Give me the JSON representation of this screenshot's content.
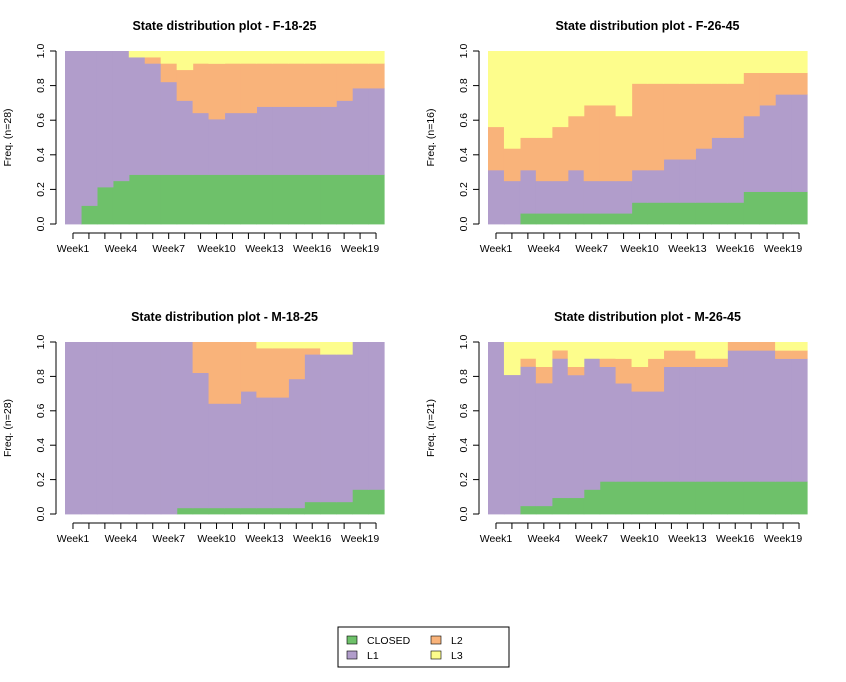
{
  "legend": {
    "entries": [
      {
        "label": "CLOSED",
        "color": "#6ec16a"
      },
      {
        "label": "L2",
        "color": "#f9b37a"
      },
      {
        "label": "L1",
        "color": "#b19dcb"
      },
      {
        "label": "L3",
        "color": "#fdfd8c"
      }
    ]
  },
  "chart_data": [
    {
      "type": "area",
      "subtype": "state-distribution-stacked-bar",
      "title": "State distribution plot -  F-18-25",
      "ylabel": "Freq. (n=28)",
      "ylim": [
        0,
        1
      ],
      "yticks": [
        "0.0",
        "0.2",
        "0.4",
        "0.6",
        "0.8",
        "1.0"
      ],
      "x": [
        "Week1",
        "Week2",
        "Week3",
        "Week4",
        "Week5",
        "Week6",
        "Week7",
        "Week8",
        "Week9",
        "Week10",
        "Week11",
        "Week12",
        "Week13",
        "Week14",
        "Week15",
        "Week16",
        "Week17",
        "Week18",
        "Week19",
        "Week20"
      ],
      "xtick_labels": [
        "Week1",
        "Week4",
        "Week7",
        "Week10",
        "Week13",
        "Week16",
        "Week19"
      ],
      "series": [
        {
          "name": "CLOSED",
          "color": "#6ec16a",
          "values": [
            0,
            0.107,
            0.214,
            0.25,
            0.286,
            0.286,
            0.286,
            0.286,
            0.286,
            0.286,
            0.286,
            0.286,
            0.286,
            0.286,
            0.286,
            0.286,
            0.286,
            0.286,
            0.286,
            0.286
          ]
        },
        {
          "name": "L1",
          "color": "#b19dcb",
          "values": [
            1.0,
            0.893,
            0.786,
            0.75,
            0.679,
            0.643,
            0.536,
            0.428,
            0.357,
            0.321,
            0.357,
            0.357,
            0.393,
            0.393,
            0.393,
            0.393,
            0.393,
            0.428,
            0.5,
            0.5
          ]
        },
        {
          "name": "L2",
          "color": "#f9b37a",
          "values": [
            0,
            0,
            0,
            0,
            0,
            0.036,
            0.107,
            0.178,
            0.286,
            0.321,
            0.286,
            0.286,
            0.25,
            0.25,
            0.25,
            0.25,
            0.25,
            0.215,
            0.143,
            0.143
          ]
        },
        {
          "name": "L3",
          "color": "#fdfd8c",
          "values": [
            0,
            0,
            0,
            0,
            0.035,
            0.035,
            0.071,
            0.108,
            0.071,
            0.072,
            0.071,
            0.071,
            0.071,
            0.071,
            0.071,
            0.071,
            0.071,
            0.071,
            0.071,
            0.071
          ]
        }
      ]
    },
    {
      "type": "area",
      "subtype": "state-distribution-stacked-bar",
      "title": "State distribution plot -  F-26-45",
      "ylabel": "Freq. (n=16)",
      "ylim": [
        0,
        1
      ],
      "yticks": [
        "0.0",
        "0.2",
        "0.4",
        "0.6",
        "0.8",
        "1.0"
      ],
      "x": [
        "Week1",
        "Week2",
        "Week3",
        "Week4",
        "Week5",
        "Week6",
        "Week7",
        "Week8",
        "Week9",
        "Week10",
        "Week11",
        "Week12",
        "Week13",
        "Week14",
        "Week15",
        "Week16",
        "Week17",
        "Week18",
        "Week19",
        "Week20"
      ],
      "xtick_labels": [
        "Week1",
        "Week4",
        "Week7",
        "Week10",
        "Week13",
        "Week16",
        "Week19"
      ],
      "series": [
        {
          "name": "CLOSED",
          "color": "#6ec16a",
          "values": [
            0,
            0,
            0.0625,
            0.0625,
            0.0625,
            0.0625,
            0.0625,
            0.0625,
            0.0625,
            0.125,
            0.125,
            0.125,
            0.125,
            0.125,
            0.125,
            0.125,
            0.1875,
            0.1875,
            0.1875,
            0.1875
          ]
        },
        {
          "name": "L1",
          "color": "#b19dcb",
          "values": [
            0.3125,
            0.25,
            0.25,
            0.1875,
            0.1875,
            0.25,
            0.1875,
            0.1875,
            0.1875,
            0.1875,
            0.1875,
            0.25,
            0.25,
            0.3125,
            0.375,
            0.375,
            0.4375,
            0.5,
            0.5625,
            0.5625
          ]
        },
        {
          "name": "L2",
          "color": "#f9b37a",
          "values": [
            0.25,
            0.1875,
            0.1875,
            0.25,
            0.3125,
            0.3125,
            0.4375,
            0.4375,
            0.375,
            0.5,
            0.5,
            0.4375,
            0.4375,
            0.375,
            0.3125,
            0.3125,
            0.25,
            0.1875,
            0.125,
            0.125
          ]
        },
        {
          "name": "L3",
          "color": "#fdfd8c",
          "values": [
            0.4375,
            0.5625,
            0.5,
            0.5,
            0.4375,
            0.375,
            0.3125,
            0.3125,
            0.375,
            0.1875,
            0.1875,
            0.1875,
            0.1875,
            0.1875,
            0.1875,
            0.1875,
            0.125,
            0.125,
            0.125,
            0.125
          ]
        }
      ]
    },
    {
      "type": "area",
      "subtype": "state-distribution-stacked-bar",
      "title": "State distribution plot -  M-18-25",
      "ylabel": "Freq. (n=28)",
      "ylim": [
        0,
        1
      ],
      "yticks": [
        "0.0",
        "0.2",
        "0.4",
        "0.6",
        "0.8",
        "1.0"
      ],
      "x": [
        "Week1",
        "Week2",
        "Week3",
        "Week4",
        "Week5",
        "Week6",
        "Week7",
        "Week8",
        "Week9",
        "Week10",
        "Week11",
        "Week12",
        "Week13",
        "Week14",
        "Week15",
        "Week16",
        "Week17",
        "Week18",
        "Week19",
        "Week20"
      ],
      "xtick_labels": [
        "Week1",
        "Week4",
        "Week7",
        "Week10",
        "Week13",
        "Week16",
        "Week19"
      ],
      "series": [
        {
          "name": "CLOSED",
          "color": "#6ec16a",
          "values": [
            0,
            0,
            0,
            0,
            0,
            0,
            0,
            0.036,
            0.036,
            0.036,
            0.036,
            0.036,
            0.036,
            0.036,
            0.036,
            0.071,
            0.071,
            0.071,
            0.143,
            0.143
          ]
        },
        {
          "name": "L1",
          "color": "#b19dcb",
          "values": [
            1.0,
            1.0,
            1.0,
            1.0,
            1.0,
            1.0,
            1.0,
            0.964,
            0.786,
            0.607,
            0.607,
            0.678,
            0.643,
            0.643,
            0.75,
            0.858,
            0.858,
            0.858,
            0.857,
            0.857
          ]
        },
        {
          "name": "L2",
          "color": "#f9b37a",
          "values": [
            0,
            0,
            0,
            0,
            0,
            0,
            0,
            0,
            0.178,
            0.357,
            0.357,
            0.286,
            0.286,
            0.286,
            0.179,
            0.036,
            0,
            0,
            0,
            0
          ]
        },
        {
          "name": "L3",
          "color": "#fdfd8c",
          "values": [
            0,
            0,
            0,
            0,
            0,
            0,
            0,
            0,
            0,
            0,
            0,
            0,
            0.035,
            0.035,
            0.035,
            0.035,
            0.071,
            0.071,
            0,
            0
          ]
        }
      ]
    },
    {
      "type": "area",
      "subtype": "state-distribution-stacked-bar",
      "title": "State distribution plot -  M-26-45",
      "ylabel": "Freq. (n=21)",
      "ylim": [
        0,
        1
      ],
      "yticks": [
        "0.0",
        "0.2",
        "0.4",
        "0.6",
        "0.8",
        "1.0"
      ],
      "x": [
        "Week1",
        "Week2",
        "Week3",
        "Week4",
        "Week5",
        "Week6",
        "Week7",
        "Week8",
        "Week9",
        "Week10",
        "Week11",
        "Week12",
        "Week13",
        "Week14",
        "Week15",
        "Week16",
        "Week17",
        "Week18",
        "Week19",
        "Week20"
      ],
      "xtick_labels": [
        "Week1",
        "Week4",
        "Week7",
        "Week10",
        "Week13",
        "Week16",
        "Week19"
      ],
      "series": [
        {
          "name": "CLOSED",
          "color": "#6ec16a",
          "values": [
            0,
            0,
            0.048,
            0.048,
            0.095,
            0.095,
            0.143,
            0.19,
            0.19,
            0.19,
            0.19,
            0.19,
            0.19,
            0.19,
            0.19,
            0.19,
            0.19,
            0.19,
            0.19,
            0.19
          ]
        },
        {
          "name": "L1",
          "color": "#b19dcb",
          "values": [
            1.0,
            0.81,
            0.81,
            0.714,
            0.81,
            0.714,
            0.762,
            0.667,
            0.571,
            0.524,
            0.524,
            0.667,
            0.667,
            0.667,
            0.667,
            0.762,
            0.762,
            0.762,
            0.714,
            0.714
          ]
        },
        {
          "name": "L2",
          "color": "#f9b37a",
          "values": [
            0,
            0,
            0.047,
            0.095,
            0.048,
            0.048,
            0,
            0.048,
            0.143,
            0.143,
            0.19,
            0.095,
            0.095,
            0.048,
            0.048,
            0.048,
            0.048,
            0.048,
            0.048,
            0.048
          ]
        },
        {
          "name": "L3",
          "color": "#fdfd8c",
          "values": [
            0,
            0.19,
            0.095,
            0.143,
            0.047,
            0.143,
            0.095,
            0.095,
            0.096,
            0.143,
            0.096,
            0.048,
            0.048,
            0.095,
            0.095,
            0,
            0,
            0,
            0.048,
            0.048
          ]
        }
      ]
    }
  ]
}
